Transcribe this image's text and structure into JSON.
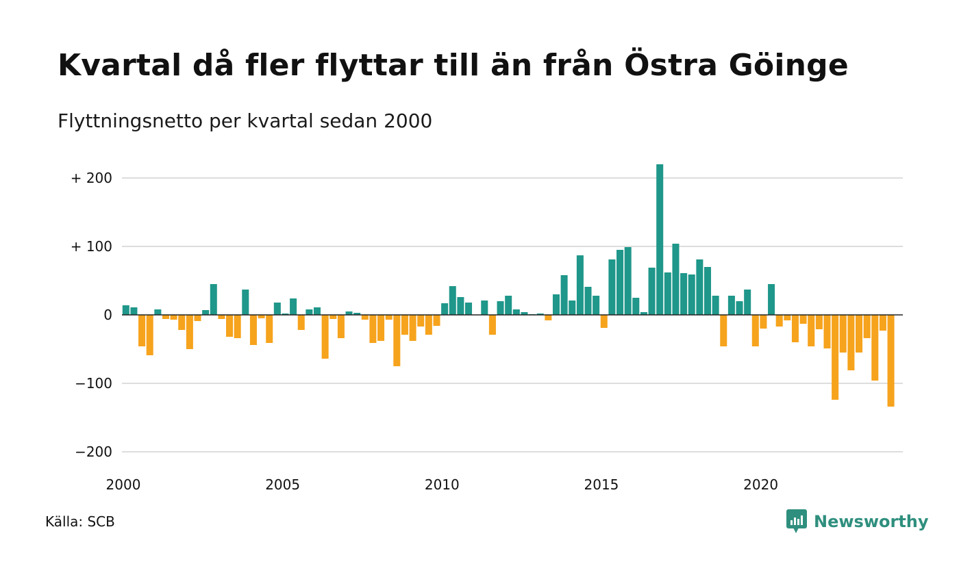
{
  "title": "Kvartal då fler flyttar till än från Östra Göinge",
  "subtitle": "Flyttningsnetto per kvartal sedan 2000",
  "source": "Källa: SCB",
  "brand": {
    "name": "Newsworthy",
    "icon": "newsworthy-logo-icon"
  },
  "colors": {
    "positive": "#1f978a",
    "negative": "#f6a31d",
    "grid": "#dddddd",
    "zero": "#222222"
  },
  "chart_data": {
    "type": "bar",
    "x_start": 2000,
    "x_step": 0.25,
    "xlim": [
      2000,
      2024.5
    ],
    "ylim": [
      -230,
      240
    ],
    "x_ticks": [
      {
        "value": 2000,
        "label": "2000"
      },
      {
        "value": 2005,
        "label": "2005"
      },
      {
        "value": 2010,
        "label": "2010"
      },
      {
        "value": 2015,
        "label": "2015"
      },
      {
        "value": 2020,
        "label": "2020"
      }
    ],
    "y_ticks": [
      {
        "value": 200,
        "label": "+ 200"
      },
      {
        "value": 100,
        "label": "+ 100"
      },
      {
        "value": 0,
        "label": "0"
      },
      {
        "value": -100,
        "label": "−100"
      },
      {
        "value": -200,
        "label": "−200"
      }
    ],
    "values": [
      14,
      11,
      -46,
      -59,
      8,
      -6,
      -7,
      -22,
      -50,
      -9,
      7,
      45,
      -6,
      -32,
      -34,
      37,
      -44,
      -5,
      -41,
      18,
      2,
      24,
      -22,
      8,
      11,
      -64,
      -6,
      -34,
      5,
      3,
      -7,
      -41,
      -38,
      -7,
      -75,
      -29,
      -38,
      -17,
      -29,
      -16,
      17,
      42,
      26,
      18,
      0,
      21,
      -29,
      20,
      28,
      8,
      4,
      1,
      2,
      -8,
      30,
      58,
      21,
      87,
      41,
      28,
      -19,
      81,
      95,
      99,
      25,
      4,
      69,
      220,
      62,
      104,
      61,
      59,
      81,
      70,
      28,
      -46,
      28,
      20,
      37,
      -46,
      -20,
      45,
      -17,
      -8,
      -40,
      -13,
      -46,
      -21,
      -49,
      -124,
      -55,
      -81,
      -55,
      -34,
      -96,
      -23,
      -134
    ]
  }
}
